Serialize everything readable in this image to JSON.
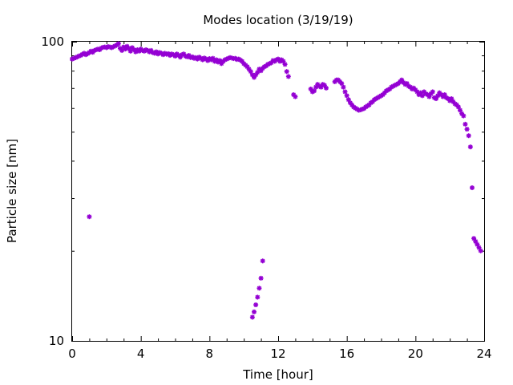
{
  "chart_data": {
    "type": "scatter",
    "title": "Modes location (3/19/19)",
    "xlabel": "Time [hour]",
    "ylabel": "Particle size [nm]",
    "xlim": [
      0,
      24
    ],
    "ylim": [
      10,
      100
    ],
    "yscale": "log",
    "grid": false,
    "legend": "none",
    "marker_color": "#9400d3",
    "xticks": [
      {
        "value": 0,
        "label": "0"
      },
      {
        "value": 4,
        "label": "4"
      },
      {
        "value": 8,
        "label": "8"
      },
      {
        "value": 12,
        "label": "12"
      },
      {
        "value": 16,
        "label": "16"
      },
      {
        "value": 20,
        "label": "20"
      },
      {
        "value": 24,
        "label": "24"
      }
    ],
    "yticks": [
      {
        "value": 10,
        "label": "10"
      },
      {
        "value": 100,
        "label": "100"
      }
    ],
    "series": [
      {
        "name": "",
        "points": [
          [
            0.0,
            87.5
          ],
          [
            0.1,
            88.0
          ],
          [
            0.2,
            88.4
          ],
          [
            0.3,
            89.0
          ],
          [
            0.4,
            89.6
          ],
          [
            0.5,
            90.0
          ],
          [
            0.6,
            90.8
          ],
          [
            0.7,
            91.5
          ],
          [
            0.8,
            90.5
          ],
          [
            0.9,
            91.2
          ],
          [
            1.0,
            92.0
          ],
          [
            1.1,
            93.0
          ],
          [
            1.2,
            92.2
          ],
          [
            1.3,
            93.5
          ],
          [
            1.4,
            94.0
          ],
          [
            1.5,
            94.5
          ],
          [
            1.6,
            94.0
          ],
          [
            1.7,
            95.2
          ],
          [
            1.8,
            95.8
          ],
          [
            1.9,
            96.0
          ],
          [
            2.0,
            95.5
          ],
          [
            2.1,
            96.3
          ],
          [
            2.2,
            96.0
          ],
          [
            2.3,
            95.5
          ],
          [
            2.4,
            96.2
          ],
          [
            2.5,
            96.8
          ],
          [
            2.6,
            97.5
          ],
          [
            2.7,
            98.5
          ],
          [
            2.8,
            95.0
          ],
          [
            2.9,
            93.5
          ],
          [
            3.0,
            96.0
          ],
          [
            3.1,
            94.5
          ],
          [
            3.2,
            96.5
          ],
          [
            3.3,
            95.0
          ],
          [
            3.4,
            93.0
          ],
          [
            3.5,
            95.5
          ],
          [
            3.6,
            94.0
          ],
          [
            3.7,
            92.5
          ],
          [
            3.8,
            94.0
          ],
          [
            3.9,
            93.0
          ],
          [
            4.0,
            94.5
          ],
          [
            4.1,
            93.5
          ],
          [
            4.2,
            93.0
          ],
          [
            4.3,
            94.0
          ],
          [
            4.4,
            93.5
          ],
          [
            4.5,
            92.5
          ],
          [
            4.6,
            93.5
          ],
          [
            4.7,
            92.0
          ],
          [
            4.8,
            91.5
          ],
          [
            4.9,
            92.5
          ],
          [
            5.0,
            91.0
          ],
          [
            5.1,
            92.0
          ],
          [
            5.2,
            91.5
          ],
          [
            5.3,
            90.5
          ],
          [
            5.4,
            91.5
          ],
          [
            5.5,
            90.8
          ],
          [
            5.6,
            91.2
          ],
          [
            5.7,
            90.0
          ],
          [
            5.8,
            91.0
          ],
          [
            5.9,
            90.5
          ],
          [
            6.0,
            89.5
          ],
          [
            6.1,
            91.0
          ],
          [
            6.2,
            90.0
          ],
          [
            6.3,
            88.8
          ],
          [
            6.4,
            90.5
          ],
          [
            6.5,
            91.0
          ],
          [
            6.6,
            89.5
          ],
          [
            6.7,
            89.0
          ],
          [
            6.8,
            90.0
          ],
          [
            6.9,
            88.5
          ],
          [
            7.0,
            89.0
          ],
          [
            7.1,
            88.0
          ],
          [
            7.2,
            88.5
          ],
          [
            7.3,
            87.5
          ],
          [
            7.4,
            88.8
          ],
          [
            7.5,
            88.0
          ],
          [
            7.6,
            87.0
          ],
          [
            7.7,
            88.2
          ],
          [
            7.8,
            87.5
          ],
          [
            7.9,
            86.5
          ],
          [
            8.0,
            87.8
          ],
          [
            8.1,
            87.0
          ],
          [
            8.2,
            88.0
          ],
          [
            8.3,
            86.0
          ],
          [
            8.4,
            87.0
          ],
          [
            8.5,
            85.5
          ],
          [
            8.6,
            86.5
          ],
          [
            8.7,
            84.5
          ],
          [
            8.8,
            86.0
          ],
          [
            8.9,
            87.0
          ],
          [
            9.0,
            87.5
          ],
          [
            9.1,
            88.0
          ],
          [
            9.2,
            88.5
          ],
          [
            9.3,
            88.2
          ],
          [
            9.4,
            87.8
          ],
          [
            9.5,
            88.0
          ],
          [
            9.6,
            87.2
          ],
          [
            9.7,
            87.5
          ],
          [
            9.8,
            86.8
          ],
          [
            9.9,
            86.0
          ],
          [
            10.0,
            84.5
          ],
          [
            10.1,
            83.5
          ],
          [
            10.2,
            82.5
          ],
          [
            10.3,
            81.0
          ],
          [
            10.4,
            79.5
          ],
          [
            10.5,
            77.5
          ],
          [
            10.6,
            76.0
          ],
          [
            10.7,
            77.5
          ],
          [
            10.8,
            79.0
          ],
          [
            10.9,
            81.0
          ],
          [
            11.0,
            80.0
          ],
          [
            11.1,
            81.5
          ],
          [
            11.2,
            82.5
          ],
          [
            11.3,
            83.0
          ],
          [
            11.4,
            84.0
          ],
          [
            11.5,
            84.5
          ],
          [
            11.6,
            85.0
          ],
          [
            11.7,
            86.5
          ],
          [
            11.8,
            86.0
          ],
          [
            11.9,
            87.0
          ],
          [
            12.0,
            87.5
          ],
          [
            12.1,
            86.0
          ],
          [
            12.2,
            87.0
          ],
          [
            12.3,
            86.0
          ],
          [
            12.4,
            84.0
          ],
          [
            12.5,
            79.5
          ],
          [
            12.6,
            76.5
          ],
          [
            12.9,
            66.5
          ],
          [
            13.0,
            65.5
          ],
          [
            13.9,
            69.5
          ],
          [
            14.0,
            68.0
          ],
          [
            14.1,
            68.5
          ],
          [
            14.2,
            70.5
          ],
          [
            14.3,
            72.0
          ],
          [
            14.4,
            71.0
          ],
          [
            14.5,
            70.5
          ],
          [
            14.6,
            72.0
          ],
          [
            14.7,
            71.5
          ],
          [
            14.8,
            70.0
          ],
          [
            15.3,
            73.5
          ],
          [
            15.4,
            74.5
          ],
          [
            15.5,
            74.5
          ],
          [
            15.6,
            73.5
          ],
          [
            15.7,
            72.5
          ],
          [
            15.8,
            70.5
          ],
          [
            15.9,
            68.0
          ],
          [
            16.0,
            66.0
          ],
          [
            16.1,
            64.0
          ],
          [
            16.2,
            62.5
          ],
          [
            16.3,
            61.5
          ],
          [
            16.4,
            60.5
          ],
          [
            16.5,
            60.0
          ],
          [
            16.6,
            59.5
          ],
          [
            16.7,
            59.0
          ],
          [
            16.8,
            59.2
          ],
          [
            16.9,
            59.5
          ],
          [
            17.0,
            59.8
          ],
          [
            17.1,
            60.5
          ],
          [
            17.2,
            61.0
          ],
          [
            17.3,
            61.5
          ],
          [
            17.4,
            62.5
          ],
          [
            17.5,
            63.0
          ],
          [
            17.6,
            64.0
          ],
          [
            17.7,
            64.5
          ],
          [
            17.8,
            65.0
          ],
          [
            17.9,
            65.5
          ],
          [
            18.0,
            66.0
          ],
          [
            18.1,
            66.5
          ],
          [
            18.2,
            67.5
          ],
          [
            18.3,
            68.5
          ],
          [
            18.4,
            69.0
          ],
          [
            18.5,
            69.5
          ],
          [
            18.6,
            70.5
          ],
          [
            18.7,
            71.0
          ],
          [
            18.8,
            71.5
          ],
          [
            18.9,
            72.0
          ],
          [
            19.0,
            72.5
          ],
          [
            19.1,
            73.5
          ],
          [
            19.2,
            74.5
          ],
          [
            19.3,
            73.0
          ],
          [
            19.4,
            72.0
          ],
          [
            19.5,
            72.5
          ],
          [
            19.6,
            71.0
          ],
          [
            19.7,
            70.5
          ],
          [
            19.8,
            69.5
          ],
          [
            19.9,
            70.0
          ],
          [
            20.0,
            69.0
          ],
          [
            20.1,
            68.0
          ],
          [
            20.2,
            66.5
          ],
          [
            20.3,
            67.5
          ],
          [
            20.4,
            66.0
          ],
          [
            20.5,
            68.0
          ],
          [
            20.6,
            67.0
          ],
          [
            20.7,
            66.5
          ],
          [
            20.8,
            65.5
          ],
          [
            20.9,
            67.0
          ],
          [
            21.0,
            68.0
          ],
          [
            21.1,
            65.0
          ],
          [
            21.2,
            64.5
          ],
          [
            21.3,
            66.0
          ],
          [
            21.4,
            67.5
          ],
          [
            21.5,
            66.5
          ],
          [
            21.6,
            65.5
          ],
          [
            21.7,
            66.5
          ],
          [
            21.8,
            65.0
          ],
          [
            21.9,
            64.5
          ],
          [
            22.0,
            63.5
          ],
          [
            22.1,
            64.5
          ],
          [
            22.2,
            63.0
          ],
          [
            22.3,
            62.0
          ],
          [
            22.4,
            61.5
          ],
          [
            22.5,
            60.5
          ],
          [
            22.6,
            59.0
          ],
          [
            22.7,
            57.5
          ],
          [
            22.8,
            56.5
          ],
          [
            22.9,
            53.0
          ],
          [
            23.0,
            51.0
          ],
          [
            23.1,
            48.5
          ],
          [
            23.2,
            44.5
          ],
          [
            23.3,
            32.5
          ],
          [
            23.4,
            22.0
          ],
          [
            23.5,
            21.5
          ],
          [
            23.6,
            21.0
          ],
          [
            23.7,
            20.5
          ],
          [
            23.8,
            20.0
          ],
          [
            1.0,
            26.0
          ],
          [
            10.5,
            12.0
          ],
          [
            10.6,
            12.5
          ],
          [
            10.7,
            13.2
          ],
          [
            10.8,
            14.0
          ],
          [
            10.9,
            15.0
          ],
          [
            11.0,
            16.2
          ],
          [
            11.1,
            18.5
          ]
        ]
      }
    ]
  }
}
